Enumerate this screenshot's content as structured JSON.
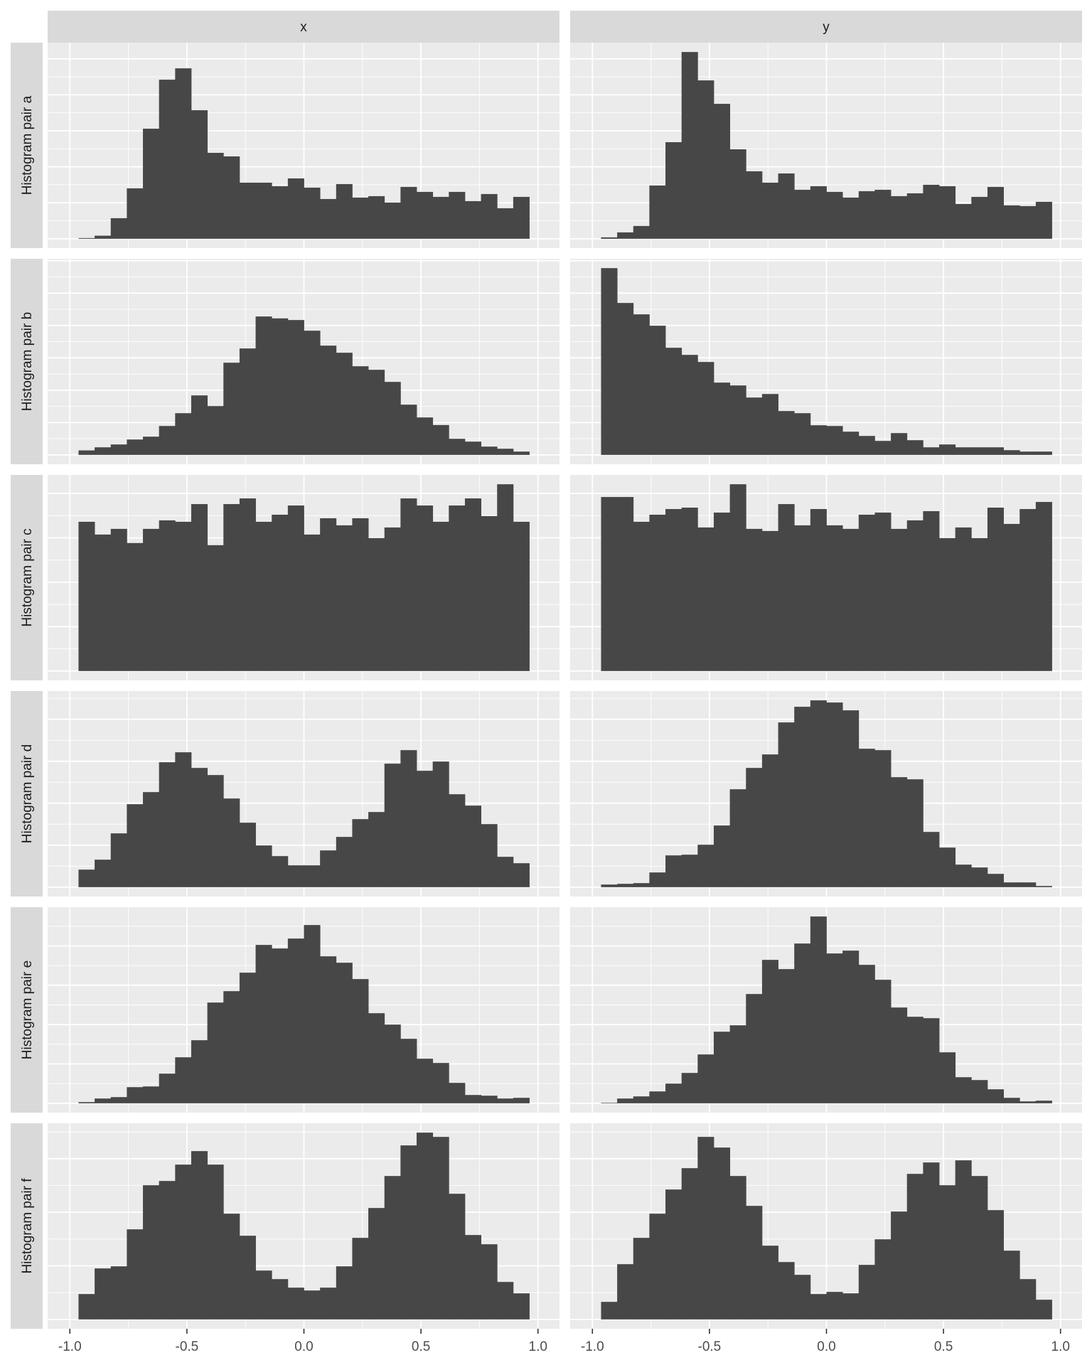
{
  "chart_data": {
    "type": "bar",
    "subtype": "faceted histogram",
    "facet_columns": [
      "x",
      "y"
    ],
    "facet_rows": [
      "Histogram pair a",
      "Histogram pair b",
      "Histogram pair c",
      "Histogram pair d",
      "Histogram pair e",
      "Histogram pair f"
    ],
    "x_ticks": [
      -1.0,
      -0.5,
      0.0,
      0.5,
      1.0
    ],
    "x_tick_labels": [
      "-1.0",
      "-0.5",
      "0.0",
      "0.5",
      "1.0"
    ],
    "xlim": [
      -1.095,
      1.092
    ],
    "bin_range": [
      -0.963,
      0.963
    ],
    "y_axis_labels_shown": false,
    "y_scale": "free per row, relative counts",
    "y_major_step_by_row": [
      152,
      136.5,
      188,
      177,
      166,
      226
    ],
    "grid": true,
    "bar_color": "#474747",
    "panel_background": "#ebebeb",
    "strip_background": "#d9d9d9",
    "panels": [
      [
        {
          "row": "Histogram pair a",
          "col": "x",
          "values": [
            3,
            13,
            87,
            213,
            465,
            672,
            720,
            543,
            363,
            348,
            237,
            237,
            222,
            255,
            216,
            168,
            231,
            174,
            180,
            153,
            219,
            198,
            177,
            198,
            159,
            189,
            129,
            177
          ]
        },
        {
          "row": "Histogram pair a",
          "col": "y",
          "values": [
            6,
            27,
            54,
            225,
            408,
            789,
            669,
            570,
            378,
            285,
            237,
            276,
            207,
            222,
            198,
            174,
            201,
            207,
            180,
            192,
            228,
            222,
            147,
            177,
            219,
            141,
            138,
            156
          ]
        }
      ],
      [
        {
          "row": "Histogram pair b",
          "col": "x",
          "values": [
            19,
            32,
            44,
            65,
            77,
            122,
            176,
            251,
            206,
            389,
            449,
            584,
            576,
            569,
            524,
            461,
            431,
            374,
            359,
            308,
            212,
            158,
            126,
            68,
            56,
            35,
            26,
            14
          ]
        },
        {
          "row": "Histogram pair b",
          "col": "y",
          "values": [
            788,
            641,
            593,
            545,
            452,
            422,
            392,
            305,
            293,
            242,
            257,
            185,
            176,
            125,
            122,
            98,
            80,
            59,
            92,
            62,
            32,
            44,
            32,
            32,
            32,
            20,
            14,
            14
          ]
        }
      ],
      [
        {
          "row": "Histogram pair c",
          "col": "x",
          "values": [
            632,
            578,
            602,
            542,
            602,
            638,
            632,
            707,
            533,
            707,
            731,
            632,
            662,
            701,
            578,
            647,
            617,
            647,
            563,
            608,
            731,
            701,
            632,
            701,
            731,
            656,
            791,
            632
          ]
        },
        {
          "row": "Histogram pair c",
          "col": "y",
          "values": [
            737,
            737,
            632,
            662,
            686,
            692,
            608,
            671,
            791,
            602,
            593,
            707,
            617,
            686,
            617,
            602,
            662,
            671,
            602,
            638,
            677,
            563,
            608,
            563,
            692,
            623,
            686,
            716
          ]
        }
      ],
      [
        {
          "row": "Histogram pair d",
          "col": "x",
          "values": [
            74,
            116,
            227,
            350,
            401,
            527,
            569,
            503,
            473,
            374,
            272,
            176,
            131,
            92,
            92,
            155,
            212,
            287,
            317,
            521,
            578,
            491,
            530,
            392,
            344,
            266,
            128,
            101
          ]
        },
        {
          "row": "Histogram pair d",
          "col": "y",
          "values": [
            11,
            14,
            17,
            62,
            134,
            137,
            179,
            260,
            413,
            503,
            560,
            695,
            761,
            788,
            779,
            746,
            584,
            578,
            464,
            455,
            233,
            167,
            95,
            83,
            56,
            20,
            20,
            5
          ]
        }
      ],
      [
        {
          "row": "Histogram pair e",
          "col": "x",
          "values": [
            5,
            20,
            26,
            68,
            71,
            125,
            194,
            266,
            425,
            473,
            551,
            668,
            653,
            695,
            752,
            620,
            593,
            524,
            380,
            332,
            272,
            188,
            170,
            86,
            35,
            32,
            20,
            23
          ]
        },
        {
          "row": "Histogram pair e",
          "col": "y",
          "values": [
            2,
            20,
            29,
            50,
            83,
            128,
            206,
            302,
            329,
            461,
            605,
            566,
            674,
            788,
            632,
            644,
            584,
            521,
            404,
            365,
            359,
            215,
            110,
            98,
            59,
            23,
            8,
            11
          ]
        }
      ],
      [
        {
          "row": "Histogram pair f",
          "col": "x",
          "values": [
            107,
            215,
            224,
            380,
            566,
            584,
            653,
            710,
            653,
            446,
            353,
            206,
            170,
            134,
            122,
            134,
            224,
            344,
            470,
            605,
            734,
            788,
            770,
            530,
            356,
            317,
            158,
            110
          ]
        },
        {
          "row": "Histogram pair f",
          "col": "y",
          "values": [
            74,
            233,
            344,
            446,
            548,
            638,
            770,
            725,
            605,
            479,
            311,
            242,
            188,
            107,
            116,
            110,
            230,
            338,
            455,
            614,
            662,
            566,
            671,
            605,
            461,
            290,
            170,
            83
          ]
        }
      ]
    ]
  }
}
